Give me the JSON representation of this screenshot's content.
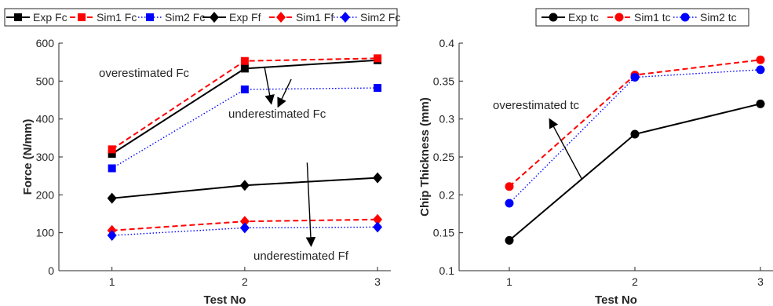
{
  "chart_data": [
    {
      "type": "line",
      "x": [
        1,
        2,
        3
      ],
      "xticks": [
        "1",
        "2",
        "3"
      ],
      "xlabel": "Test No",
      "ylabel": "Force (N/mm)",
      "xlim": [
        0.6,
        3.1
      ],
      "ylim": [
        0,
        600
      ],
      "yticks": [
        0,
        100,
        200,
        300,
        400,
        500,
        600
      ],
      "grid": false,
      "legend_position": "top",
      "series": [
        {
          "name": "Exp Fc",
          "values": [
            308,
            533,
            555
          ],
          "color": "#000000",
          "dash": "solid",
          "marker": "square"
        },
        {
          "name": "Sim1 Fc",
          "values": [
            320,
            553,
            560
          ],
          "color": "#ff0000",
          "dash": "dashed",
          "marker": "square"
        },
        {
          "name": "Sim2 Fc",
          "values": [
            270,
            478,
            482
          ],
          "color": "#0000ff",
          "dash": "dotted",
          "marker": "square"
        },
        {
          "name": "Exp Ff",
          "values": [
            191,
            225,
            245
          ],
          "color": "#000000",
          "dash": "solid",
          "marker": "diamond"
        },
        {
          "name": "Sim1 Ff",
          "values": [
            106,
            130,
            135
          ],
          "color": "#ff0000",
          "dash": "dashed",
          "marker": "diamond"
        },
        {
          "name": "Sim2 Fc",
          "values": [
            93,
            113,
            115
          ],
          "color": "#0000ff",
          "dash": "dotted",
          "marker": "diamond"
        }
      ],
      "annotations": [
        {
          "text": "overestimated Fc",
          "arrow_from": [
            2.35,
            505
          ],
          "arrow_to": [
            2.25,
            432
          ]
        },
        {
          "text": "underestimated Fc",
          "arrow_from": [
            2.15,
            535
          ],
          "arrow_to": [
            2.2,
            440
          ]
        },
        {
          "text": "underestimated Ff",
          "arrow_from": [
            2.47,
            285
          ],
          "arrow_to": [
            2.5,
            65
          ]
        }
      ]
    },
    {
      "type": "line",
      "x": [
        1,
        2,
        3
      ],
      "xticks": [
        "1",
        "2",
        "3"
      ],
      "xlabel": "Test No",
      "ylabel": "Chip Thickness (mm)",
      "xlim": [
        0.6,
        3.1
      ],
      "ylim": [
        0.1,
        0.4
      ],
      "yticks": [
        "0.1",
        "0.15",
        "0.2",
        "0.25",
        "0.3",
        "0.35",
        "0.4"
      ],
      "grid": false,
      "legend_position": "top",
      "series": [
        {
          "name": "Exp tc",
          "values": [
            0.14,
            0.28,
            0.32
          ],
          "color": "#000000",
          "dash": "solid",
          "marker": "circle"
        },
        {
          "name": "Sim1 tc",
          "values": [
            0.211,
            0.358,
            0.378
          ],
          "color": "#ff0000",
          "dash": "dashed",
          "marker": "circle"
        },
        {
          "name": "Sim2 tc",
          "values": [
            0.189,
            0.355,
            0.365
          ],
          "color": "#0000ff",
          "dash": "dotted",
          "marker": "circle"
        }
      ],
      "annotations": [
        {
          "text": "overestimated tc",
          "arrow_from": [
            1.58,
            0.22
          ],
          "arrow_to": [
            1.32,
            0.3
          ]
        }
      ]
    }
  ]
}
